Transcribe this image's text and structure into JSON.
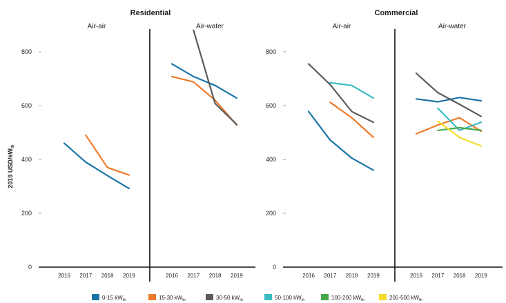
{
  "chart_data": {
    "type": "line",
    "ylabel": "2019 USD/kW",
    "ylabel_subscript": "th",
    "ylim": [
      0,
      850
    ],
    "yticks": [
      "0",
      "200",
      "400",
      "600",
      "800"
    ],
    "categories": [
      "2016",
      "2017",
      "2018",
      "2019"
    ],
    "grid": false,
    "legend_placement": "bottom",
    "series_defs": [
      {
        "key": "s0",
        "name": "0-15 kW",
        "sub": "th",
        "color": "#1b75a8"
      },
      {
        "key": "s1",
        "name": "15-30 kW",
        "sub": "th",
        "color": "#ee7a2a"
      },
      {
        "key": "s2",
        "name": "30-50 kW",
        "sub": "th",
        "color": "#5b5b5b"
      },
      {
        "key": "s3",
        "name": "50-100 kW",
        "sub": "th",
        "color": "#3bbcc3"
      },
      {
        "key": "s4",
        "name": "100-200 kW",
        "sub": "th",
        "color": "#46a84a"
      },
      {
        "key": "s5",
        "name": "200-500 kW",
        "sub": "th",
        "color": "#f4dc2b"
      }
    ],
    "groups": [
      {
        "title": "Residential",
        "panels": [
          {
            "title": "Air-air",
            "series": [
              {
                "key": "s0",
                "values": [
                  460,
                  390,
                  340,
                  292
                ]
              },
              {
                "key": "s1",
                "values": [
                  null,
                  490,
                  370,
                  342
                ]
              }
            ]
          },
          {
            "title": "Air-water",
            "series": [
              {
                "key": "s0",
                "values": [
                  755,
                  708,
                  675,
                  628
                ]
              },
              {
                "key": "s1",
                "values": [
                  708,
                  688,
                  620,
                  528
                ]
              },
              {
                "key": "s2",
                "values": [
                  null,
                  880,
                  608,
                  530
                ]
              }
            ]
          }
        ]
      },
      {
        "title": "Commercial",
        "panels": [
          {
            "title": "Air-air",
            "series": [
              {
                "key": "s0",
                "values": [
                  578,
                  472,
                  405,
                  360
                ]
              },
              {
                "key": "s1",
                "values": [
                  null,
                  612,
                  555,
                  482
                ]
              },
              {
                "key": "s2",
                "values": [
                  755,
                  678,
                  578,
                  538
                ]
              },
              {
                "key": "s3",
                "values": [
                  null,
                  685,
                  675,
                  628
                ]
              }
            ]
          },
          {
            "title": "Air-water",
            "series": [
              {
                "key": "s0",
                "values": [
                  625,
                  614,
                  630,
                  618
                ]
              },
              {
                "key": "s1",
                "values": [
                  495,
                  528,
                  555,
                  505
                ]
              },
              {
                "key": "s2",
                "values": [
                  720,
                  648,
                  605,
                  560
                ]
              },
              {
                "key": "s3",
                "values": [
                  null,
                  590,
                  508,
                  538
                ]
              },
              {
                "key": "s4",
                "values": [
                  null,
                  508,
                  518,
                  508
                ]
              },
              {
                "key": "s5",
                "values": [
                  null,
                  542,
                  482,
                  450
                ]
              }
            ]
          }
        ]
      }
    ]
  }
}
